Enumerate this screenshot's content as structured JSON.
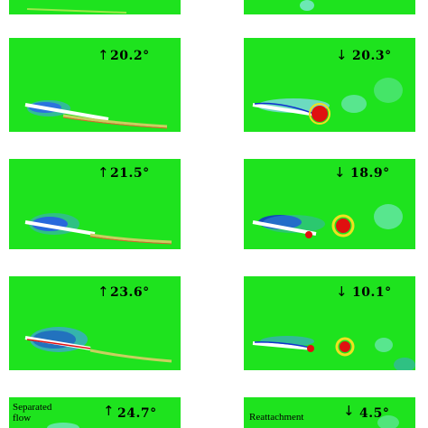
{
  "panels": [
    {
      "id": "L1",
      "direction": "up",
      "angle": "20.2°",
      "note": ""
    },
    {
      "id": "R1",
      "direction": "down",
      "angle": "20.3°",
      "note": ""
    },
    {
      "id": "L2",
      "direction": "up",
      "angle": "21.5°",
      "note": ""
    },
    {
      "id": "R2",
      "direction": "down",
      "angle": "18.9°",
      "note": ""
    },
    {
      "id": "L3",
      "direction": "up",
      "angle": "23.6°",
      "note": ""
    },
    {
      "id": "R3",
      "direction": "down",
      "angle": "10.1°",
      "note": ""
    },
    {
      "id": "L4",
      "direction": "up",
      "angle": "24.7°",
      "note": "Separated flow"
    },
    {
      "id": "R4",
      "direction": "down",
      "angle": "4.5°",
      "note": "Reattachment"
    }
  ],
  "labels": {
    "L4_note_line1": "Separated",
    "L4_note_line2": "flow",
    "R4_note": "Reattachment"
  },
  "arrows": {
    "up": "↑",
    "down": "↓"
  },
  "colors": {
    "background": "#1ee31e",
    "vortex_positive": "#e01010",
    "vortex_negative": "#1030d0"
  }
}
